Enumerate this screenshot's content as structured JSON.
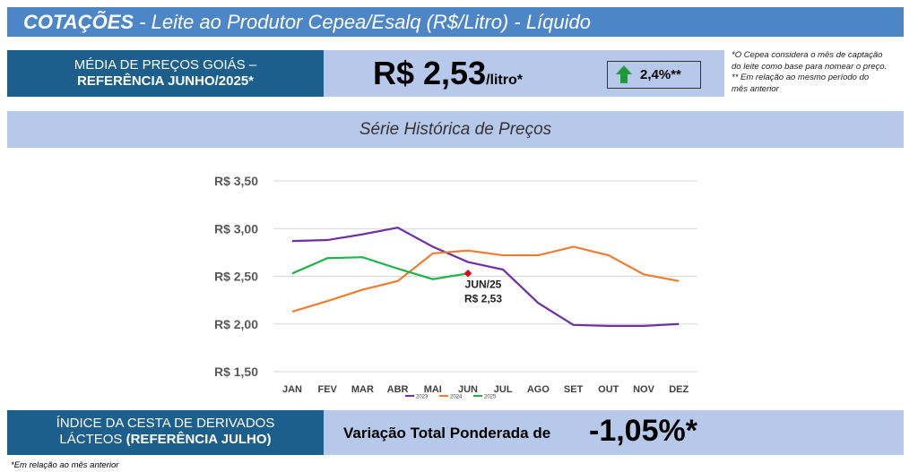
{
  "header": {
    "title": "COTAÇÕES",
    "subtitle": " - Leite ao Produtor Cepea/Esalq (R$/Litro) - Líquido"
  },
  "price_box": {
    "label_line1": "MÉDIA DE PREÇOS GOIÁS –",
    "label_line2": "REFERÊNCIA JUNHO/2025*",
    "price": "R$ 2,53",
    "unit": "/litro*",
    "change": "2,4%**",
    "notes": [
      "*O Cepea considera o mês de captação",
      "do leite como base para nomear o preço.",
      "** Em relação ao mesmo período do",
      "mês anterior"
    ]
  },
  "section_title": "Série Histórica de Preços",
  "chart_data": {
    "type": "line",
    "categories": [
      "JAN",
      "FEV",
      "MAR",
      "ABR",
      "MAI",
      "JUN",
      "JUL",
      "AGO",
      "SET",
      "OUT",
      "NOV",
      "DEZ"
    ],
    "series": [
      {
        "name": "2023",
        "color": "#7030a0",
        "values": [
          2.87,
          2.88,
          2.94,
          3.01,
          2.81,
          2.65,
          2.57,
          2.22,
          1.99,
          1.98,
          1.98,
          2.0
        ]
      },
      {
        "name": "2024",
        "color": "#ed7d31",
        "values": [
          2.13,
          2.24,
          2.36,
          2.45,
          2.74,
          2.77,
          2.72,
          2.72,
          2.81,
          2.72,
          2.52,
          2.45
        ]
      },
      {
        "name": "2025",
        "color": "#21b24b",
        "values": [
          2.53,
          2.69,
          2.7,
          2.58,
          2.47,
          2.53,
          null,
          null,
          null,
          null,
          null,
          null
        ]
      }
    ],
    "ylim": [
      1.5,
      3.5
    ],
    "yticks": [
      {
        "value": 1.5,
        "label": "R$ 1,50"
      },
      {
        "value": 2.0,
        "label": "R$ 2,00"
      },
      {
        "value": 2.5,
        "label": "R$ 2,50"
      },
      {
        "value": 3.0,
        "label": "R$ 3,00"
      },
      {
        "value": 3.5,
        "label": "R$ 3,50"
      }
    ],
    "grid": true,
    "annotation": {
      "line1": "JUN/25",
      "line2": "R$ 2,53",
      "color": "#e0001b"
    }
  },
  "index_box": {
    "label_line1": "ÍNDICE DA CESTA DE DERIVADOS",
    "label_line2a": "LÁCTEOS ",
    "label_line2b": "(REFERÊNCIA JULHO)",
    "text": "Variação Total Ponderada de",
    "value": "-1,05%*"
  },
  "footnote": "*Em relação ao mês anterior"
}
